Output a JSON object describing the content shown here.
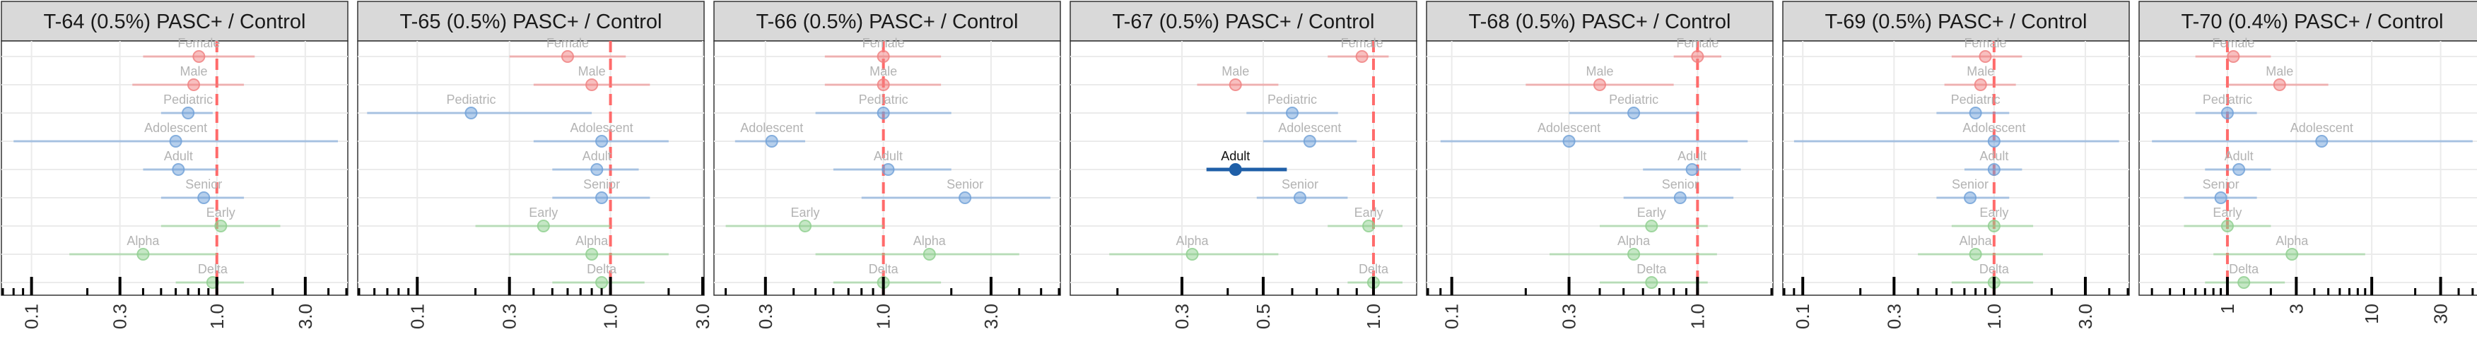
{
  "colors": {
    "Sex": "#f08080",
    "Age": "#6fa0d8",
    "Variant": "#8ecf8e",
    "highlight": "#1f5fa8",
    "refline": "#ff6b6b",
    "strip_bg": "#d9d9d9",
    "grid": "#ebebeb"
  },
  "chart_data": [
    {
      "type": "scatter",
      "title": "T-64 (0.5%) PASC+ / Control",
      "x_scale": "log",
      "xlim": [
        0.07,
        5.0
      ],
      "x_ticks": [
        "0.1",
        "0.3",
        "1.0",
        "3.0"
      ],
      "reference_x": 1.0,
      "points": [
        {
          "label": "Female",
          "group": "Sex",
          "or": 0.8,
          "lo": 0.4,
          "hi": 1.6,
          "significant": false
        },
        {
          "label": "Male",
          "group": "Sex",
          "or": 0.75,
          "lo": 0.35,
          "hi": 1.4,
          "significant": false
        },
        {
          "label": "Pediatric",
          "group": "Age",
          "or": 0.7,
          "lo": 0.5,
          "hi": 0.95,
          "significant": false
        },
        {
          "label": "Adolescent",
          "group": "Age",
          "or": 0.6,
          "lo": 0.08,
          "hi": 4.5,
          "significant": false
        },
        {
          "label": "Adult",
          "group": "Age",
          "or": 0.62,
          "lo": 0.4,
          "hi": 1.0,
          "significant": false
        },
        {
          "label": "Senior",
          "group": "Age",
          "or": 0.85,
          "lo": 0.5,
          "hi": 1.4,
          "significant": false
        },
        {
          "label": "Early",
          "group": "Variant",
          "or": 1.05,
          "lo": 0.5,
          "hi": 2.2,
          "significant": false
        },
        {
          "label": "Alpha",
          "group": "Variant",
          "or": 0.4,
          "lo": 0.16,
          "hi": 1.0,
          "significant": false
        },
        {
          "label": "Delta",
          "group": "Variant",
          "or": 0.95,
          "lo": 0.6,
          "hi": 1.4,
          "significant": false
        }
      ]
    },
    {
      "type": "scatter",
      "title": "T-65 (0.5%) PASC+ / Control",
      "x_scale": "log",
      "xlim": [
        0.05,
        3.0
      ],
      "x_ticks": [
        "0.1",
        "0.3",
        "1.0",
        "3.0"
      ],
      "reference_x": 1.0,
      "points": [
        {
          "label": "Female",
          "group": "Sex",
          "or": 0.6,
          "lo": 0.3,
          "hi": 1.2,
          "significant": false
        },
        {
          "label": "Male",
          "group": "Sex",
          "or": 0.8,
          "lo": 0.4,
          "hi": 1.6,
          "significant": false
        },
        {
          "label": "Pediatric",
          "group": "Age",
          "or": 0.19,
          "lo": 0.055,
          "hi": 0.8,
          "significant": false
        },
        {
          "label": "Adolescent",
          "group": "Age",
          "or": 0.9,
          "lo": 0.4,
          "hi": 2.0,
          "significant": false
        },
        {
          "label": "Adult",
          "group": "Age",
          "or": 0.85,
          "lo": 0.5,
          "hi": 1.4,
          "significant": false
        },
        {
          "label": "Senior",
          "group": "Age",
          "or": 0.9,
          "lo": 0.5,
          "hi": 1.6,
          "significant": false
        },
        {
          "label": "Early",
          "group": "Variant",
          "or": 0.45,
          "lo": 0.2,
          "hi": 1.0,
          "significant": false
        },
        {
          "label": "Alpha",
          "group": "Variant",
          "or": 0.8,
          "lo": 0.3,
          "hi": 2.0,
          "significant": false
        },
        {
          "label": "Delta",
          "group": "Variant",
          "or": 0.9,
          "lo": 0.5,
          "hi": 1.5,
          "significant": false
        }
      ]
    },
    {
      "type": "scatter",
      "title": "T-66 (0.5%) PASC+ / Control",
      "x_scale": "log",
      "xlim": [
        0.18,
        6.0
      ],
      "x_ticks": [
        "0.3",
        "1.0",
        "3.0"
      ],
      "reference_x": 1.0,
      "points": [
        {
          "label": "Female",
          "group": "Sex",
          "or": 1.0,
          "lo": 0.55,
          "hi": 1.8,
          "significant": false
        },
        {
          "label": "Male",
          "group": "Sex",
          "or": 1.0,
          "lo": 0.55,
          "hi": 1.8,
          "significant": false
        },
        {
          "label": "Pediatric",
          "group": "Age",
          "or": 1.0,
          "lo": 0.5,
          "hi": 2.0,
          "significant": false
        },
        {
          "label": "Adolescent",
          "group": "Age",
          "or": 0.32,
          "lo": 0.22,
          "hi": 0.45,
          "significant": false
        },
        {
          "label": "Adult",
          "group": "Age",
          "or": 1.05,
          "lo": 0.6,
          "hi": 2.0,
          "significant": false
        },
        {
          "label": "Senior",
          "group": "Age",
          "or": 2.3,
          "lo": 0.8,
          "hi": 5.5,
          "significant": false
        },
        {
          "label": "Early",
          "group": "Variant",
          "or": 0.45,
          "lo": 0.2,
          "hi": 1.0,
          "significant": false
        },
        {
          "label": "Alpha",
          "group": "Variant",
          "or": 1.6,
          "lo": 0.5,
          "hi": 4.0,
          "significant": false
        },
        {
          "label": "Delta",
          "group": "Variant",
          "or": 1.0,
          "lo": 0.6,
          "hi": 1.8,
          "significant": false
        }
      ]
    },
    {
      "type": "scatter",
      "title": "T-67 (0.5%) PASC+ / Control",
      "x_scale": "log",
      "xlim": [
        0.15,
        1.3
      ],
      "x_ticks": [
        "0.3",
        "0.5",
        "1.0"
      ],
      "reference_x": 1.0,
      "points": [
        {
          "label": "Female",
          "group": "Sex",
          "or": 0.93,
          "lo": 0.75,
          "hi": 1.1,
          "significant": false
        },
        {
          "label": "Male",
          "group": "Sex",
          "or": 0.42,
          "lo": 0.33,
          "hi": 0.55,
          "significant": false
        },
        {
          "label": "Pediatric",
          "group": "Age",
          "or": 0.6,
          "lo": 0.45,
          "hi": 0.8,
          "significant": false
        },
        {
          "label": "Adolescent",
          "group": "Age",
          "or": 0.67,
          "lo": 0.5,
          "hi": 0.9,
          "significant": false
        },
        {
          "label": "Adult",
          "group": "Age",
          "or": 0.42,
          "lo": 0.35,
          "hi": 0.58,
          "significant": true
        },
        {
          "label": "Senior",
          "group": "Age",
          "or": 0.63,
          "lo": 0.48,
          "hi": 0.85,
          "significant": false
        },
        {
          "label": "Early",
          "group": "Variant",
          "or": 0.97,
          "lo": 0.75,
          "hi": 1.2,
          "significant": false
        },
        {
          "label": "Alpha",
          "group": "Variant",
          "or": 0.32,
          "lo": 0.19,
          "hi": 0.55,
          "significant": false
        },
        {
          "label": "Delta",
          "group": "Variant",
          "or": 1.0,
          "lo": 0.85,
          "hi": 1.2,
          "significant": false
        }
      ]
    },
    {
      "type": "scatter",
      "title": "T-68 (0.5%) PASC+ / Control",
      "x_scale": "log",
      "xlim": [
        0.08,
        2.0
      ],
      "x_ticks": [
        "0.1",
        "0.3",
        "1.0"
      ],
      "reference_x": 1.0,
      "points": [
        {
          "label": "Female",
          "group": "Sex",
          "or": 1.0,
          "lo": 0.8,
          "hi": 1.25,
          "significant": false
        },
        {
          "label": "Male",
          "group": "Sex",
          "or": 0.4,
          "lo": 0.2,
          "hi": 0.8,
          "significant": false
        },
        {
          "label": "Pediatric",
          "group": "Age",
          "or": 0.55,
          "lo": 0.3,
          "hi": 1.0,
          "significant": false
        },
        {
          "label": "Adolescent",
          "group": "Age",
          "or": 0.3,
          "lo": 0.09,
          "hi": 1.6,
          "significant": false
        },
        {
          "label": "Adult",
          "group": "Age",
          "or": 0.95,
          "lo": 0.6,
          "hi": 1.5,
          "significant": false
        },
        {
          "label": "Senior",
          "group": "Age",
          "or": 0.85,
          "lo": 0.5,
          "hi": 1.4,
          "significant": false
        },
        {
          "label": "Early",
          "group": "Variant",
          "or": 0.65,
          "lo": 0.4,
          "hi": 1.1,
          "significant": false
        },
        {
          "label": "Alpha",
          "group": "Variant",
          "or": 0.55,
          "lo": 0.25,
          "hi": 1.2,
          "significant": false
        },
        {
          "label": "Delta",
          "group": "Variant",
          "or": 0.65,
          "lo": 0.4,
          "hi": 1.1,
          "significant": false
        }
      ]
    },
    {
      "type": "scatter",
      "title": "T-69 (0.5%) PASC+ / Control",
      "x_scale": "log",
      "xlim": [
        0.08,
        5.0
      ],
      "x_ticks": [
        "0.1",
        "0.3",
        "1.0",
        "3.0"
      ],
      "reference_x": 1.0,
      "points": [
        {
          "label": "Female",
          "group": "Sex",
          "or": 0.9,
          "lo": 0.6,
          "hi": 1.4,
          "significant": false
        },
        {
          "label": "Male",
          "group": "Sex",
          "or": 0.85,
          "lo": 0.55,
          "hi": 1.3,
          "significant": false
        },
        {
          "label": "Pediatric",
          "group": "Age",
          "or": 0.8,
          "lo": 0.5,
          "hi": 1.2,
          "significant": false
        },
        {
          "label": "Adolescent",
          "group": "Age",
          "or": 1.0,
          "lo": 0.09,
          "hi": 4.5,
          "significant": false
        },
        {
          "label": "Adult",
          "group": "Age",
          "or": 1.0,
          "lo": 0.7,
          "hi": 1.4,
          "significant": false
        },
        {
          "label": "Senior",
          "group": "Age",
          "or": 0.75,
          "lo": 0.5,
          "hi": 1.2,
          "significant": false
        },
        {
          "label": "Early",
          "group": "Variant",
          "or": 1.0,
          "lo": 0.6,
          "hi": 1.6,
          "significant": false
        },
        {
          "label": "Alpha",
          "group": "Variant",
          "or": 0.8,
          "lo": 0.4,
          "hi": 1.8,
          "significant": false
        },
        {
          "label": "Delta",
          "group": "Variant",
          "or": 1.0,
          "lo": 0.6,
          "hi": 1.6,
          "significant": false
        }
      ]
    },
    {
      "type": "scatter",
      "title": "T-70 (0.4%) PASC+ / Control",
      "x_scale": "log",
      "xlim": [
        0.25,
        60.0
      ],
      "x_ticks": [
        "1",
        "3",
        "10",
        "30"
      ],
      "reference_x": 1.0,
      "points": [
        {
          "label": "Female",
          "group": "Sex",
          "or": 1.1,
          "lo": 0.6,
          "hi": 2.0,
          "significant": false
        },
        {
          "label": "Male",
          "group": "Sex",
          "or": 2.3,
          "lo": 1.0,
          "hi": 5.0,
          "significant": false
        },
        {
          "label": "Pediatric",
          "group": "Age",
          "or": 1.0,
          "lo": 0.6,
          "hi": 1.6,
          "significant": false
        },
        {
          "label": "Adolescent",
          "group": "Age",
          "or": 4.5,
          "lo": 0.3,
          "hi": 50.0,
          "significant": false
        },
        {
          "label": "Adult",
          "group": "Age",
          "or": 1.2,
          "lo": 0.7,
          "hi": 2.0,
          "significant": false
        },
        {
          "label": "Senior",
          "group": "Age",
          "or": 0.9,
          "lo": 0.5,
          "hi": 1.6,
          "significant": false
        },
        {
          "label": "Early",
          "group": "Variant",
          "or": 1.0,
          "lo": 0.5,
          "hi": 2.0,
          "significant": false
        },
        {
          "label": "Alpha",
          "group": "Variant",
          "or": 2.8,
          "lo": 0.8,
          "hi": 9.0,
          "significant": false
        },
        {
          "label": "Delta",
          "group": "Variant",
          "or": 1.3,
          "lo": 0.7,
          "hi": 2.5,
          "significant": false
        }
      ]
    }
  ]
}
